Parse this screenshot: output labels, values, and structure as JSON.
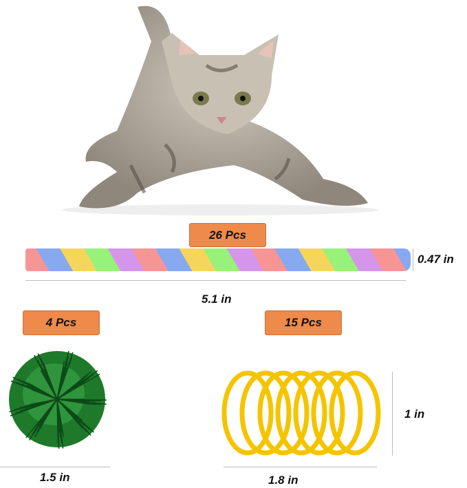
{
  "tube": {
    "count_label": "26 Pcs",
    "length": "5.1 in",
    "diameter": "0.47 in"
  },
  "pompom": {
    "count_label": "4 Pcs",
    "diameter": "1.5 in",
    "color": "#1e7a2a"
  },
  "spring": {
    "count_label": "15 Pcs",
    "length": "1.8 in",
    "height": "1 in",
    "color": "#f5c400"
  },
  "colors": {
    "badge": "#ee8a4a"
  }
}
